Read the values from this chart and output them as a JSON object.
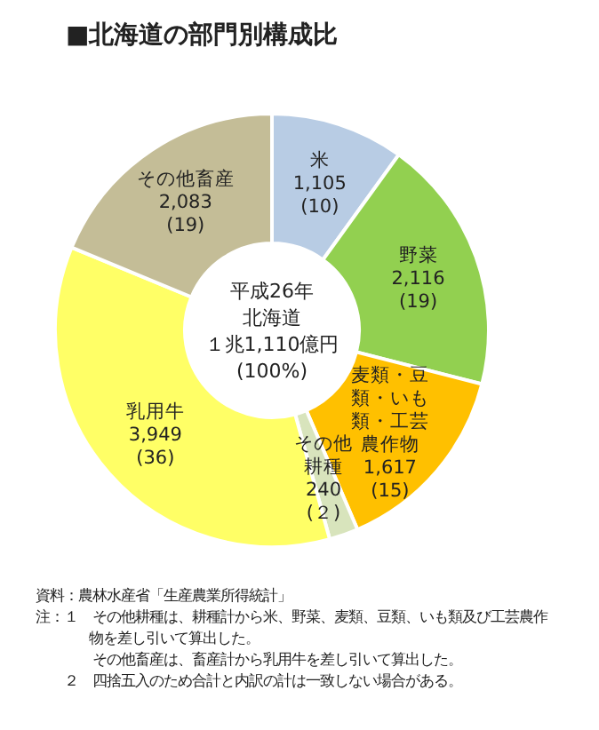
{
  "chart_data": {
    "type": "donut",
    "title": "■北海道の部門別構成比",
    "categories": [
      "米",
      "野菜",
      "麦類・豆類・いも類・工芸農作物",
      "その他耕種",
      "乳用牛",
      "その他畜産"
    ],
    "values": [
      1105,
      2116,
      1617,
      240,
      3949,
      2083
    ],
    "colors": [
      "#b8cce4",
      "#92d050",
      "#ffc000",
      "#d8e4bc",
      "#ffff66",
      "#c4bd97"
    ],
    "value_labels": [
      "1,105\n(10)",
      "2,116\n(19)",
      "1,617\n(15)",
      "240\n(２)",
      "3,949\n(36)",
      "2,083\n(19)"
    ],
    "annotations": [
      "平成26年",
      "北海道",
      "１兆1,110億円",
      "(100%)",
      "資料：農林水産省「生産農業所得統計」",
      "注：１　その他耕種は、耕種計から米、野菜、麦類、豆類、いも類及び工芸農作物を差し引いて算出した。",
      "　　　　その他畜産は、畜産計から乳用牛を差し引いて算出した。",
      "　　２　四捨五入のため合計と内訳の計は一致しない場合がある。"
    ]
  }
}
